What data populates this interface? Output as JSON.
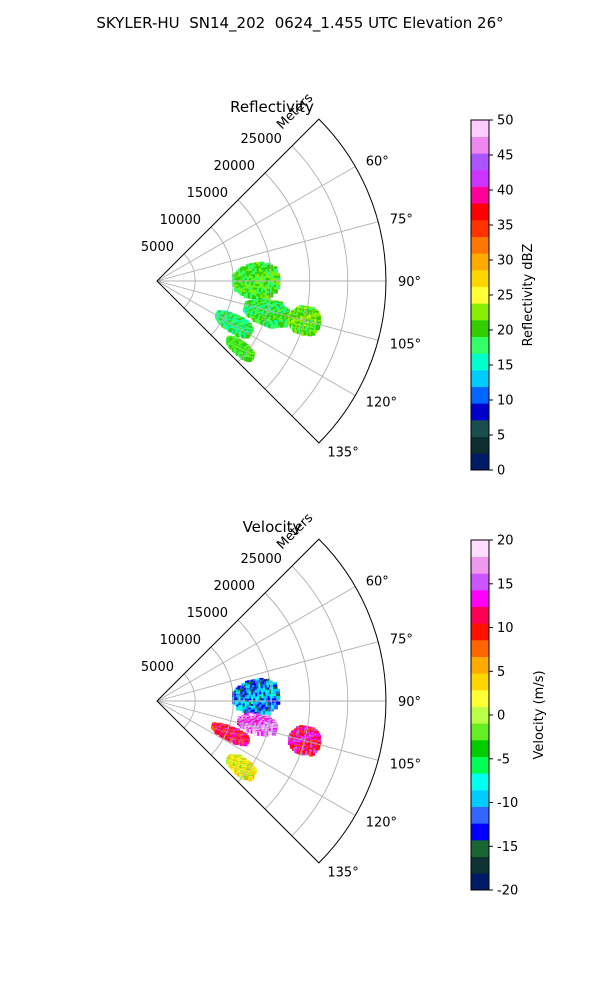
{
  "title": "SKYLER-HU  SN14_202  0624_1.455 UTC Elevation 26°",
  "chart_data": [
    {
      "type": "heatmap",
      "projection": "polar-sector",
      "title": "Reflectivity",
      "radial_label": "Meters",
      "radial_ticks": [
        5000,
        10000,
        15000,
        20000,
        25000
      ],
      "radial_range": [
        0,
        30000
      ],
      "angle_ticks": [
        "60°",
        "75°",
        "90°",
        "105°",
        "120°",
        "135°"
      ],
      "angle_range_deg": [
        45,
        135
      ],
      "grid": true,
      "colorbar": {
        "label": "Reflectivity dBZ",
        "range": [
          0,
          50
        ],
        "ticks": [
          0,
          5,
          10,
          15,
          20,
          25,
          30,
          35,
          40,
          45,
          50
        ]
      },
      "echo_regions": [
        {
          "range_m": [
            10000,
            16000
          ],
          "azimuth_deg": [
            80,
            100
          ],
          "value": 20
        },
        {
          "range_m": [
            12000,
            18000
          ],
          "azimuth_deg": [
            100,
            112
          ],
          "value": 19
        },
        {
          "range_m": [
            9000,
            14000
          ],
          "azimuth_deg": [
            114,
            124
          ],
          "value": 18
        },
        {
          "range_m": [
            18000,
            22000
          ],
          "azimuth_deg": [
            100,
            110
          ],
          "value": 21
        },
        {
          "range_m": [
            12000,
            16000
          ],
          "azimuth_deg": [
            126,
            132
          ],
          "value": 20
        }
      ]
    },
    {
      "type": "heatmap",
      "projection": "polar-sector",
      "title": "Velocity",
      "radial_label": "Meters",
      "radial_ticks": [
        5000,
        10000,
        15000,
        20000,
        25000
      ],
      "radial_range": [
        0,
        30000
      ],
      "angle_ticks": [
        "60°",
        "75°",
        "90°",
        "105°",
        "120°",
        "135°"
      ],
      "angle_range_deg": [
        45,
        135
      ],
      "grid": true,
      "colorbar": {
        "label": "Velocity (m/s)",
        "range": [
          -20,
          20
        ],
        "ticks": [
          -20,
          -15,
          -10,
          -5,
          0,
          5,
          10,
          15,
          20
        ]
      },
      "echo_regions": [
        {
          "range_m": [
            10000,
            16000
          ],
          "azimuth_deg": [
            78,
            98
          ],
          "value": -11
        },
        {
          "range_m": [
            11000,
            16000
          ],
          "azimuth_deg": [
            98,
            108
          ],
          "value": 16
        },
        {
          "range_m": [
            8000,
            13000
          ],
          "azimuth_deg": [
            110,
            118
          ],
          "value": 11
        },
        {
          "range_m": [
            18000,
            22000
          ],
          "azimuth_deg": [
            100,
            110
          ],
          "value": 12
        },
        {
          "range_m": [
            12000,
            16000
          ],
          "azimuth_deg": [
            124,
            132
          ],
          "value": 2
        }
      ]
    }
  ],
  "colors": {
    "grid": "#b0b0b0",
    "reflectivity_scale": [
      "#001a66",
      "#0d2e2e",
      "#1a4d4d",
      "#0000cc",
      "#0066ff",
      "#00ccff",
      "#00ffcc",
      "#33ff66",
      "#33cc00",
      "#88ee00",
      "#ffff33",
      "#ffd700",
      "#ffaa00",
      "#ff7700",
      "#ff3300",
      "#ff0000",
      "#ff0099",
      "#cc33ff",
      "#aa55ff",
      "#ee88ee",
      "#ffccff"
    ],
    "velocity_scale": [
      "#001a66",
      "#0d3333",
      "#1a6633",
      "#0000ff",
      "#3366ff",
      "#00ccff",
      "#00ffee",
      "#00ff55",
      "#00cc00",
      "#66ee22",
      "#bbff44",
      "#ffff33",
      "#ffd700",
      "#ffaa00",
      "#ff6600",
      "#ff1100",
      "#ff0055",
      "#ff00ff",
      "#cc55ff",
      "#ee99ee",
      "#ffddff"
    ]
  }
}
